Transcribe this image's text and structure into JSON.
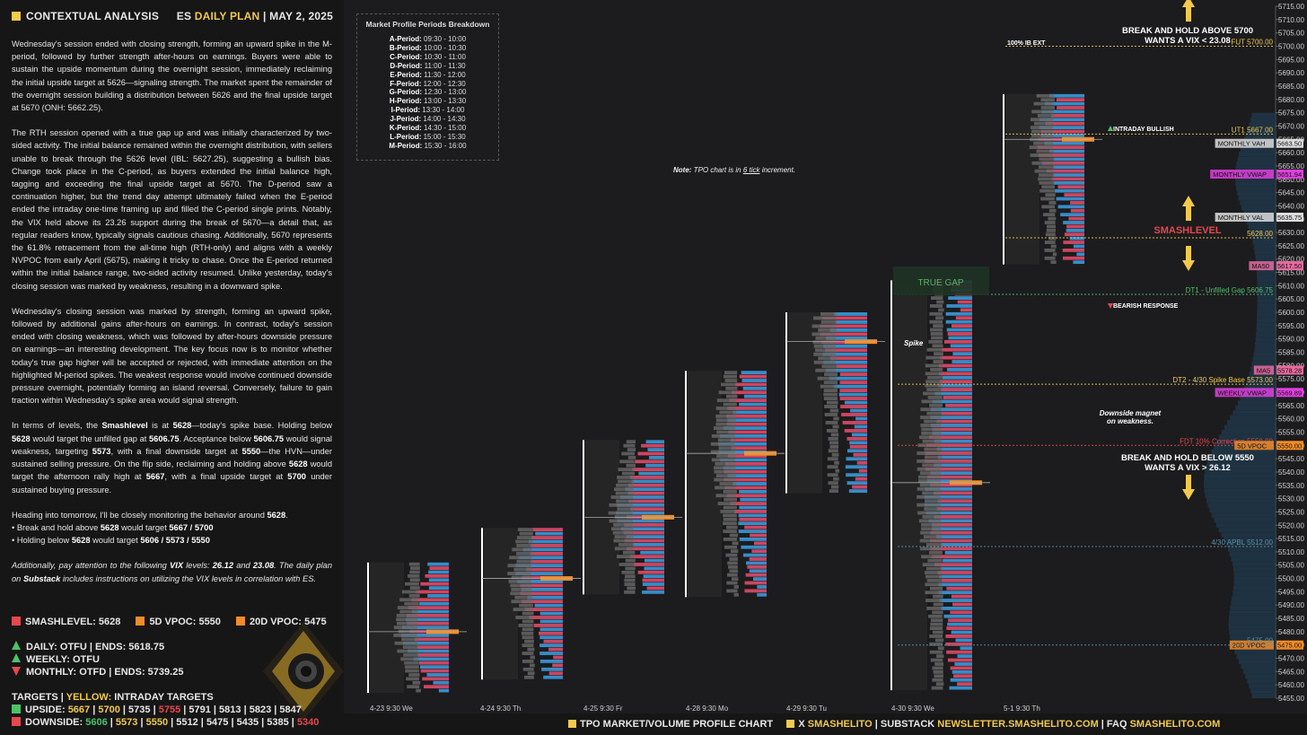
{
  "header": {
    "left": "CONTEXTUAL ANALYSIS",
    "right_prefix": "ES",
    "right_plan": "DAILY PLAN",
    "right_sep": "|",
    "right_date": "MAY 2, 2025"
  },
  "paragraphs": [
    "Wednesday's session ended with closing strength, forming an upward spike in the M-period, followed by further strength after-hours on earnings. Buyers were able to sustain the upside momentum during the overnight session, immediately reclaiming the initial upside target at 5626—signaling strength. The market spent the remainder of the overnight session building a distribution between 5626 and the final upside target at 5670 (ONH: 5662.25).",
    "The RTH session opened with a true gap up and was initially characterized by two-sided activity. The initial balance remained within the overnight distribution, with sellers unable to break through the 5626 level (IBL: 5627.25), suggesting a bullish bias. Change took place in the C-period, as buyers extended the initial balance high, tagging and exceeding the final upside target at 5670. The D-period saw a continuation higher, but the trend day attempt ultimately failed when the E-period ended the intraday one-time framing up and filled the C-period single prints. Notably, the VIX held above its 23.26 support during the break of 5670—a detail that, as regular readers know, typically signals cautious chasing. Additionally, 5670 represents the 61.8% retracement from the all-time high (RTH-only) and aligns with a weekly NVPOC from early April (5675), making it tricky to chase. Once the E-period returned within the initial balance range, two-sided activity resumed. Unlike yesterday, today's closing session was marked by weakness, resulting in a downward spike.",
    "Wednesday's closing session was marked by strength, forming an upward spike, followed by additional gains after-hours on earnings. In contrast, today's session ended with closing weakness, which was followed by after-hours downside pressure on earnings—an interesting development. The key focus now is to monitor whether today's true gap higher will be accepted or rejected, with immediate attention on the highlighted M-period spikes. The weakest response would involve continued downside pressure overnight, potentially forming an island reversal. Conversely, failure to gain traction within Wednesday's spike area would signal strength."
  ],
  "levels_paragraph": {
    "p1": "In terms of levels, the ",
    "b1": "Smashlevel",
    "p2": " is at ",
    "b2": "5628",
    "p3": "—today's spike base. Holding below ",
    "b3": "5628",
    "p4": " would target the unfilled gap at ",
    "b4": "5606.75",
    "p5": ". Acceptance below ",
    "b5": "5606.75",
    "p6": " would signal weakness, targeting ",
    "b6": "5573",
    "p7": ", with a final downside target at ",
    "b7": "5550",
    "p8": "—the HVN—under sustained selling pressure. On the flip side, reclaiming and holding above ",
    "b8": "5628",
    "p9": " would target the afternoon rally high at ",
    "b9": "5667",
    "p10": ", with a final upside target at ",
    "b10": "5700",
    "p11": " under sustained buying pressure."
  },
  "tomorrow": {
    "l1a": "Heading into tomorrow, I'll be closely monitoring the behavior around ",
    "l1b": "5628",
    "l1c": ".",
    "l2a": "• Break and hold above ",
    "l2b": "5628",
    "l2c": " would target ",
    "l2d": "5667 / 5700",
    "l3a": "• Holding below ",
    "l3b": "5628",
    "l3c": " would target ",
    "l3d": "5606 / 5573 / 5550"
  },
  "vix_note": {
    "a": "Additionally, pay attention to the following ",
    "b": "VIX",
    "c": " levels: ",
    "d": "26.12",
    "e": " and ",
    "f": "23.08",
    "g": ". The daily plan on ",
    "h": "Substack",
    "i": " includes instructions on utilizing the VIX levels in correlation with ES."
  },
  "stats": {
    "smash": "SMASHLEVEL: 5628",
    "vpoc5": "5D VPOC: 5550",
    "vpoc20": "20D VPOC: 5475",
    "daily": "DAILY: OTFU  |  ENDS: 5618.75",
    "weekly": "WEEKLY: OTFU",
    "monthly": "MONTHLY: OTFD  |  ENDS: 5739.25",
    "targets_a": "TARGETS  |  ",
    "targets_b": "YELLOW:",
    "targets_c": " INTRADAY TARGETS",
    "up_label": "UPSIDE: ",
    "up_y1": "5667",
    "up_s1": " | ",
    "up_y2": "5700",
    "up_rest1": " | 5735 | ",
    "up_r": "5755",
    "up_rest2": " | 5791 | 5813 | 5823 | 5847",
    "dn_label": "DOWNSIDE: ",
    "dn_g": "5606",
    "dn_s1": " | ",
    "dn_y1": "5573",
    "dn_s2": " | ",
    "dn_y2": "5550",
    "dn_rest": " | 5512 | 5475 | 5435 | 5385 | ",
    "dn_r": "5340"
  },
  "mp_box": {
    "title": "Market Profile Periods Breakdown",
    "periods": [
      {
        "p": "A-Period:",
        "t": "09:30 - 10:00"
      },
      {
        "p": "B-Period:",
        "t": "10:00 - 10:30"
      },
      {
        "p": "C-Period:",
        "t": "10:30 - 11:00"
      },
      {
        "p": "D-Period:",
        "t": "11:00 - 11:30"
      },
      {
        "p": "E-Period:",
        "t": "11:30 - 12:00"
      },
      {
        "p": "F-Period:",
        "t": "12:00 - 12:30"
      },
      {
        "p": "G-Period:",
        "t": "12:30 - 13:00"
      },
      {
        "p": "H-Period:",
        "t": "13:00 - 13:30"
      },
      {
        "p": "I-Period:",
        "t": "13:30 - 14:00"
      },
      {
        "p": "J-Period:",
        "t": "14:00 - 14:30"
      },
      {
        "p": "K-Period:",
        "t": "14:30 - 15:00"
      },
      {
        "p": "L-Period:",
        "t": "15:00 - 15:30"
      },
      {
        "p": "M-Period:",
        "t": "15:30 - 16:00"
      }
    ]
  },
  "note": {
    "a": "Note:",
    "b": " TPO chart is in ",
    "c": "6 tick",
    "d": " increment."
  },
  "bottom": {
    "a": "TPO MARKET/VOLUME PROFILE CHART",
    "b": "X ",
    "c": "SMASHELITO",
    "d": " | SUBSTACK ",
    "e": "NEWSLETTER.SMASHELITO.COM",
    "f": " | FAQ ",
    "g": "SMASHELITO.COM"
  },
  "chart_data": {
    "type": "table",
    "y_range": [
      5455,
      5715
    ],
    "y_ticks": [
      5455,
      5460,
      5465,
      5470,
      5475,
      5480,
      5485,
      5490,
      5495,
      5500,
      5505,
      5510,
      5515,
      5520,
      5525,
      5530,
      5535,
      5540,
      5545,
      5550,
      5555,
      5560,
      5565,
      5570,
      5575,
      5580,
      5585,
      5590,
      5595,
      5600,
      5605,
      5610,
      5615,
      5620,
      5625,
      5630,
      5635,
      5640,
      5645,
      5650,
      5655,
      5660,
      5665,
      5670,
      5675,
      5680,
      5685,
      5690,
      5695,
      5700,
      5705,
      5710,
      5715
    ],
    "x_labels": [
      "4-23  9:30 We",
      "4-24  9:30 Th",
      "4-25  9:30 Fr",
      "4-28  9:30 Mo",
      "4-29  9:30 Tu",
      "4-30  9:30 We",
      "5-1  9:30 Th"
    ],
    "sessions": [
      {
        "label": "4-23",
        "low": 5457,
        "high": 5506,
        "poc": 5480
      },
      {
        "label": "4-24",
        "low": 5462,
        "high": 5519,
        "poc": 5500
      },
      {
        "label": "4-25",
        "low": 5494,
        "high": 5552,
        "poc": 5523
      },
      {
        "label": "4-28",
        "low": 5493,
        "high": 5578,
        "poc": 5547
      },
      {
        "label": "4-29",
        "low": 5532,
        "high": 5600,
        "poc": 5589
      },
      {
        "label": "4-30",
        "low": 5458,
        "high": 5612,
        "poc": 5536
      },
      {
        "label": "5-1",
        "low": 5618,
        "high": 5682,
        "poc": 5665
      }
    ],
    "levels": [
      {
        "label": "FUT  5700.00",
        "value": 5700,
        "color": "#f2c94c"
      },
      {
        "label": "UT1  5667.00",
        "value": 5667,
        "color": "#f2c94c"
      },
      {
        "label": "MONTHLY VAH",
        "tag": "5663.50",
        "value": 5663.5,
        "color": "#dddddd"
      },
      {
        "label": "MONTHLY VWAP",
        "tag": "5651.94",
        "value": 5651.94,
        "color": "#e040e0"
      },
      {
        "label": "MONTHLY VAL",
        "tag": "5635.75",
        "value": 5635.75,
        "color": "#dddddd"
      },
      {
        "label": "5628.00",
        "value": 5628,
        "color": "#f2c94c"
      },
      {
        "label": "MA50",
        "tag": "5617.50",
        "value": 5617.5,
        "color": "#e86aa0"
      },
      {
        "label": "DT1 - Unfilled Gap  5606.75",
        "value": 5606.75,
        "color": "#4cc26a"
      },
      {
        "label": "MA5",
        "tag": "5578.28",
        "value": 5578.28,
        "color": "#e86aa0"
      },
      {
        "label": "DT2 - 4/30 Spike Base  5573.00",
        "value": 5573,
        "color": "#f2c94c"
      },
      {
        "label": "WEEKLY VWAP",
        "tag": "5569.89",
        "value": 5569.89,
        "color": "#e040e0"
      },
      {
        "label": "FDT 10% Correction  5550.00",
        "value": 5550,
        "color": "#e5484d"
      },
      {
        "label": "5D VPOC",
        "tag": "5550.00",
        "value": 5550,
        "color": "#f28c28"
      },
      {
        "label": "4/30 APBL  5512.00",
        "value": 5512,
        "color": "#5b8fa8"
      },
      {
        "label": "20D VPOC",
        "tag": "5475.00",
        "value": 5475,
        "color": "#f28c28"
      },
      {
        "label": "5475.00",
        "value": 5475,
        "color": "#5b8fa8"
      }
    ],
    "annotations": [
      "100% IB EXT",
      "INTRADAY BULLISH",
      "BEARISH RESPONSE",
      "BREAK AND HOLD ABOVE 5700",
      "WANTS A VIX < 23.08",
      "SMASHLEVEL",
      "TRUE GAP",
      "Spike",
      "Downside magnet",
      "on weakness.",
      "BREAK AND HOLD BELOW 5550",
      "WANTS A VIX > 26.12"
    ]
  }
}
